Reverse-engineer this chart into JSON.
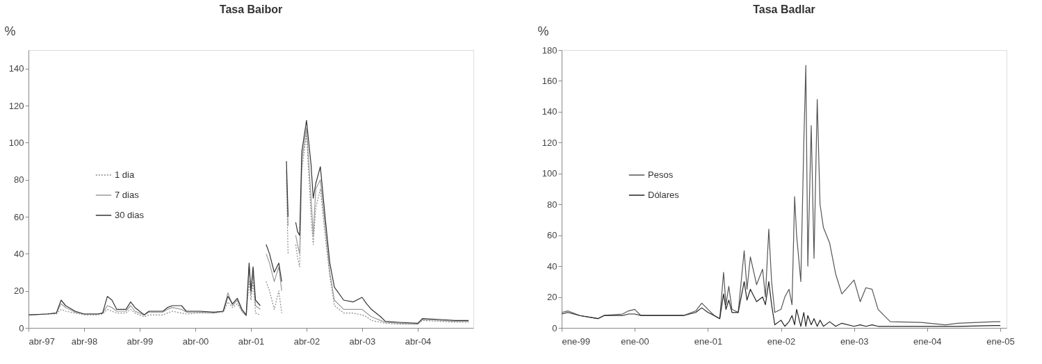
{
  "chart_data": [
    {
      "type": "line",
      "title": "Tasa Baibor",
      "ylabel": "%",
      "legend": "left",
      "grid": false,
      "x": [
        "1997-04",
        "1997-08",
        "1997-10",
        "1997-11",
        "1997-12",
        "1998-02",
        "1998-04",
        "1998-07",
        "1998-08",
        "1998-09",
        "1998-10",
        "1998-11",
        "1999-01",
        "1999-02",
        "1999-03",
        "1999-05",
        "1999-06",
        "1999-09",
        "1999-10",
        "1999-11",
        "2000-01",
        "2000-02",
        "2000-05",
        "2000-08",
        "2000-10",
        "2000-11",
        "2000-12",
        "2001-01",
        "2001-02",
        "2001-03",
        "2001-03-20",
        "2001-04",
        "2001-04-15",
        "2001-05",
        "2001-06",
        "2001-07",
        "2001-07-10",
        "2001-08",
        "2001-09",
        "2001-10",
        "2001-10-20",
        "2001-11",
        "2001-11-20",
        "2001-12",
        "2001-12-20",
        "2002-01-20",
        "2002-02",
        "2002-02-15",
        "2002-03",
        "2002-04",
        "2002-05",
        "2002-05-15",
        "2002-06",
        "2002-07",
        "2002-08",
        "2002-09",
        "2002-10",
        "2002-12",
        "2003-02",
        "2003-04",
        "2003-05",
        "2003-06",
        "2003-08",
        "2003-09",
        "2003-12",
        "2004-04",
        "2004-05",
        "2004-09",
        "2004-12",
        "2005-03"
      ],
      "series": [
        {
          "name": "1 dia",
          "color": "#888888",
          "line_style": "dotted",
          "values": [
            7,
            7.5,
            7.5,
            10,
            9,
            8,
            7,
            7,
            7.5,
            10,
            9,
            8,
            8,
            10,
            8,
            6,
            7,
            7,
            8,
            9,
            8,
            7.5,
            8,
            8,
            8.5,
            14,
            11,
            13,
            9,
            6.5,
            25,
            15,
            25,
            8,
            7,
            null,
            25,
            20,
            10,
            20,
            8,
            null,
            80,
            40,
            null,
            45,
            38,
            33,
            85,
            105,
            60,
            45,
            65,
            75,
            50,
            28,
            12,
            8,
            8,
            7,
            6,
            4,
            3,
            2.5,
            2,
            2,
            4,
            3.5,
            3,
            3
          ]
        },
        {
          "name": "7 dias",
          "color": "#9a9a9a",
          "line_style": "solid",
          "values": [
            7,
            7.5,
            8,
            13,
            11,
            8.5,
            7.5,
            7.5,
            8,
            12,
            11,
            9,
            9,
            12,
            9,
            7,
            8.5,
            8.5,
            10,
            11,
            10,
            8.5,
            8.5,
            8,
            9,
            19,
            12,
            15,
            9,
            6.5,
            33,
            18,
            30,
            12,
            10,
            null,
            40,
            35,
            25,
            33,
            20,
            null,
            85,
            55,
            null,
            50,
            45,
            40,
            90,
            108,
            70,
            50,
            75,
            80,
            55,
            30,
            15,
            10,
            10,
            10,
            8,
            6,
            4,
            3,
            2.5,
            2,
            4.5,
            4,
            3.5,
            3.5
          ]
        },
        {
          "name": "30 dias",
          "color": "#333333",
          "line_style": "solid",
          "values": [
            7,
            7.5,
            8,
            15,
            12,
            9,
            7.5,
            7.5,
            8,
            17,
            15,
            10,
            10,
            14,
            11,
            7,
            9,
            9,
            11,
            12,
            12,
            9,
            9,
            8.5,
            9,
            17,
            13,
            16,
            10,
            7,
            35,
            20,
            33,
            15,
            12,
            null,
            45,
            40,
            30,
            35,
            25,
            null,
            90,
            60,
            null,
            57,
            52,
            50,
            95,
            112,
            88,
            70,
            78,
            87,
            60,
            35,
            22,
            15,
            14,
            16.5,
            13,
            10,
            6,
            3.5,
            3,
            2.5,
            5,
            4.5,
            4,
            4
          ]
        }
      ],
      "xlim": [
        "1997-04",
        "2005-04"
      ],
      "xticks": [
        {
          "value": "1997-04",
          "label": "abr-97"
        },
        {
          "value": "1998-04",
          "label": "abr-98"
        },
        {
          "value": "1999-04",
          "label": "abr-99"
        },
        {
          "value": "2000-04",
          "label": "abr-00"
        },
        {
          "value": "2001-04",
          "label": "abr-01"
        },
        {
          "value": "2002-04",
          "label": "abr-02"
        },
        {
          "value": "2003-04",
          "label": "abr-03"
        },
        {
          "value": "2004-04",
          "label": "abr-04"
        }
      ],
      "ylim": [
        0,
        150
      ],
      "yticks": [
        0,
        20,
        40,
        60,
        80,
        100,
        120,
        140
      ]
    },
    {
      "type": "line",
      "title": "Tasa Badlar",
      "ylabel": "%",
      "legend": "left",
      "grid": false,
      "x": [
        "1999-01",
        "1999-02",
        "1999-04",
        "1999-07",
        "1999-08",
        "1999-11",
        "1999-12",
        "2000-01",
        "2000-02",
        "2000-06",
        "2000-09",
        "2000-11",
        "2000-12",
        "2001-01",
        "2001-02",
        "2001-03",
        "2001-03-20",
        "2001-04",
        "2001-04-15",
        "2001-05",
        "2001-06",
        "2001-07",
        "2001-07-15",
        "2001-08",
        "2001-09",
        "2001-10",
        "2001-10-15",
        "2001-11",
        "2001-11-15",
        "2001-12",
        "2002-01",
        "2002-01-20",
        "2002-02-10",
        "2002-02-25",
        "2002-03-10",
        "2002-03-20",
        "2002-04-10",
        "2002-04-25",
        "2002-05-05",
        "2002-05-15",
        "2002-06-01",
        "2002-06-15",
        "2002-07-01",
        "2002-07-15",
        "2002-08-01",
        "2002-09-01",
        "2002-10-01",
        "2002-11-01",
        "2003-01-01",
        "2003-02-01",
        "2003-03-01",
        "2003-04-01",
        "2003-05-01",
        "2003-07-01",
        "2003-12-01",
        "2004-04-01",
        "2004-06-01",
        "2004-12-01",
        "2005-01-01"
      ],
      "series": [
        {
          "name": "Pesos",
          "color": "#555555",
          "line_style": "solid",
          "values": [
            10,
            11,
            8,
            6,
            8,
            9,
            11,
            12,
            8,
            8,
            8,
            11,
            16,
            12,
            8,
            6,
            36,
            15,
            27,
            12,
            10,
            50,
            25,
            46,
            28,
            38,
            20,
            64,
            30,
            10,
            12,
            20,
            25,
            15,
            85,
            60,
            30,
            120,
            170,
            40,
            131,
            45,
            148,
            80,
            65,
            55,
            35,
            22,
            31,
            17,
            26,
            25,
            12,
            4,
            3.5,
            2,
            3,
            4,
            4
          ]
        },
        {
          "name": "Dólares",
          "color": "#222222",
          "line_style": "solid",
          "values": [
            9,
            10,
            8,
            6,
            8,
            8,
            9,
            9,
            8,
            8,
            8,
            10,
            13,
            10,
            8,
            6,
            22,
            12,
            18,
            10,
            10,
            30,
            18,
            25,
            17,
            20,
            15,
            30,
            15,
            2,
            5,
            1,
            4,
            8,
            2,
            12,
            1,
            10,
            1,
            8,
            2,
            6,
            1,
            5,
            1,
            4,
            1,
            3,
            1,
            2,
            1,
            2,
            1,
            1,
            1,
            1,
            1,
            1.5,
            1.5
          ]
        }
      ],
      "xlim": [
        "1999-01",
        "2005-02"
      ],
      "xticks": [
        {
          "value": "1999-01",
          "label": "ene-99"
        },
        {
          "value": "2000-01",
          "label": "ene-00"
        },
        {
          "value": "2001-01",
          "label": "ene-01"
        },
        {
          "value": "2002-01",
          "label": "ene-02"
        },
        {
          "value": "2003-01",
          "label": "ene-03"
        },
        {
          "value": "2004-01",
          "label": "ene-04"
        },
        {
          "value": "2005-01",
          "label": "ene-05"
        }
      ],
      "ylim": [
        0,
        180
      ],
      "yticks": [
        0,
        20,
        40,
        60,
        80,
        100,
        120,
        140,
        160,
        180
      ]
    }
  ]
}
